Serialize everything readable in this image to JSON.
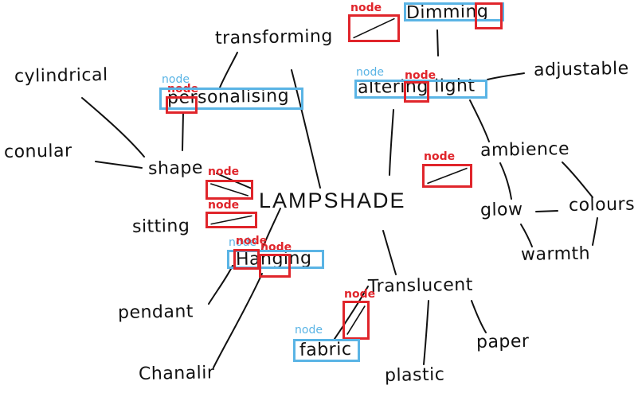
{
  "mind_map": {
    "center": "LAMPSHADE",
    "words": {
      "transforming": "transforming",
      "dimming": "Dimming",
      "personalising": "personalising",
      "cylindrical": "cylindrical",
      "altering_light": "altering light",
      "adjustable": "adjustable",
      "conular": "conular",
      "shape": "shape",
      "ambience": "ambience",
      "sitting": "sitting",
      "glow": "glow",
      "colours": "colours",
      "warmth": "warmth",
      "hanging": "Hanging",
      "pendant": "pendant",
      "translucent": "Translucent",
      "paper": "paper",
      "fabric": "fabric",
      "plastic": "plastic",
      "chandelier": "Chanalir"
    }
  },
  "annotations": {
    "tag_text": "node",
    "colors": {
      "red": "#e0252b",
      "blue": "#5ab4e5"
    }
  }
}
